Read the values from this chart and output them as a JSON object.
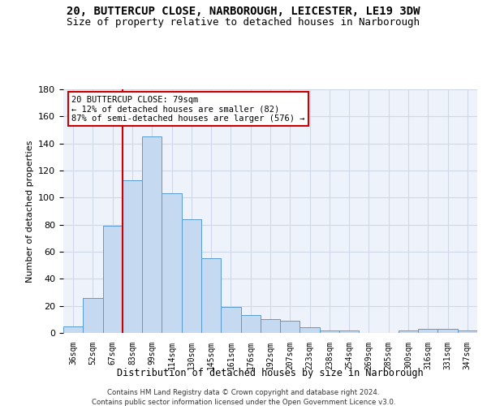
{
  "title": "20, BUTTERCUP CLOSE, NARBOROUGH, LEICESTER, LE19 3DW",
  "subtitle": "Size of property relative to detached houses in Narborough",
  "xlabel": "Distribution of detached houses by size in Narborough",
  "ylabel": "Number of detached properties",
  "categories": [
    "36sqm",
    "52sqm",
    "67sqm",
    "83sqm",
    "99sqm",
    "114sqm",
    "130sqm",
    "145sqm",
    "161sqm",
    "176sqm",
    "192sqm",
    "207sqm",
    "223sqm",
    "238sqm",
    "254sqm",
    "269sqm",
    "285sqm",
    "300sqm",
    "316sqm",
    "331sqm",
    "347sqm"
  ],
  "values": [
    5,
    26,
    79,
    113,
    145,
    103,
    84,
    55,
    19,
    13,
    10,
    9,
    4,
    2,
    2,
    0,
    0,
    2,
    3,
    3,
    2
  ],
  "bar_color": "#c5d9f0",
  "bar_edge_color": "#5a9bd5",
  "vline_x": 2.5,
  "annotation_line1": "20 BUTTERCUP CLOSE: 79sqm",
  "annotation_line2": "← 12% of detached houses are smaller (82)",
  "annotation_line3": "87% of semi-detached houses are larger (576) →",
  "annotation_box_color": "#ffffff",
  "annotation_box_edge": "#cc0000",
  "vline_color": "#cc0000",
  "ylim": [
    0,
    180
  ],
  "yticks": [
    0,
    20,
    40,
    60,
    80,
    100,
    120,
    140,
    160,
    180
  ],
  "grid_color": "#d0d8e8",
  "bg_color": "#eef2fb",
  "footer1": "Contains HM Land Registry data © Crown copyright and database right 2024.",
  "footer2": "Contains public sector information licensed under the Open Government Licence v3.0.",
  "title_fontsize": 10,
  "subtitle_fontsize": 9
}
